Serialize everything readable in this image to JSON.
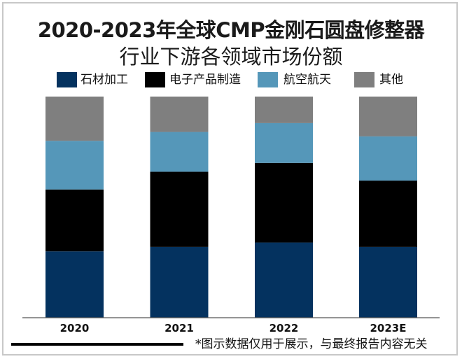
{
  "title": {
    "line1": "2020-2023年全球CMP金刚石圆盘修整器",
    "line2": "行业下游各领域市场份额"
  },
  "legend": [
    {
      "label": "石材加工",
      "color": "#04325f"
    },
    {
      "label": "电子产品制造",
      "color": "#000000"
    },
    {
      "label": "航空航天",
      "color": "#5597b9"
    },
    {
      "label": "其他",
      "color": "#7f7f7f"
    }
  ],
  "footnote": "*图示数据仅用于展示，与最终报告内容无关",
  "chart_data": {
    "type": "bar",
    "stacked": true,
    "title": "2020-2023年全球CMP金刚石圆盘修整器行业下游各领域市场份额",
    "xlabel": "",
    "ylabel": "",
    "ylim": [
      0,
      100
    ],
    "unit": "%",
    "grid": false,
    "legend_position": "top",
    "categories": [
      "2020",
      "2021",
      "2022",
      "2023E"
    ],
    "series": [
      {
        "name": "石材加工",
        "color": "#04325f",
        "values": [
          30,
          32,
          34,
          32
        ]
      },
      {
        "name": "电子产品制造",
        "color": "#000000",
        "values": [
          28,
          34,
          36,
          30
        ]
      },
      {
        "name": "航空航天",
        "color": "#5597b9",
        "values": [
          22,
          18,
          18,
          20
        ]
      },
      {
        "name": "其他",
        "color": "#7f7f7f",
        "values": [
          20,
          16,
          12,
          18
        ]
      }
    ]
  }
}
